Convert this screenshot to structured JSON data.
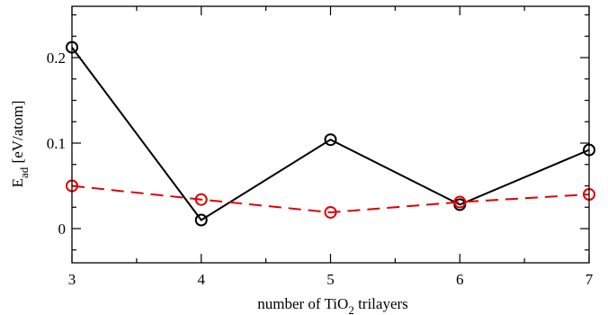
{
  "chart_data": {
    "type": "line",
    "title": "",
    "xlabel": {
      "prefix": "number of TiO",
      "sub": "2",
      "suffix": " trilayers"
    },
    "ylabel": {
      "main": "E",
      "sub": "ad",
      "unit": "  [eV/atom]"
    },
    "xlim": [
      3,
      7
    ],
    "ylim": [
      -0.04,
      0.26
    ],
    "x": [
      3,
      4,
      5,
      6,
      7
    ],
    "xticks": [
      3,
      4,
      5,
      6,
      7
    ],
    "xtick_labels": [
      "3",
      "4",
      "5",
      "6",
      "7"
    ],
    "yticks": [
      0,
      0.1,
      0.2
    ],
    "ytick_labels": [
      "0",
      "0.1",
      "0.2"
    ],
    "minor_x_step": 0.5,
    "minor_y_step": 0.025,
    "grid": false,
    "series": [
      {
        "values": [
          0.212,
          0.01,
          0.104,
          0.028,
          0.092
        ],
        "color": "#000000",
        "line_style": "solid",
        "marker": "open-circle"
      },
      {
        "values": [
          0.05,
          0.034,
          0.019,
          0.031,
          0.04
        ],
        "color": "#e00000",
        "line_style": "dashed",
        "marker": "open-circle"
      }
    ]
  }
}
